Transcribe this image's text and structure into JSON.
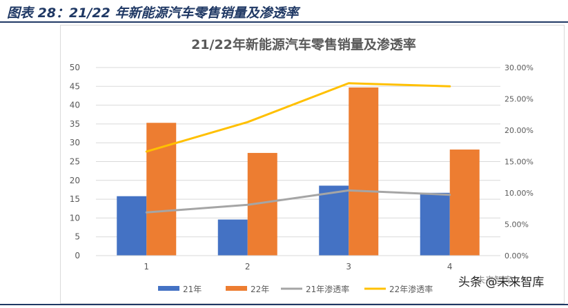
{
  "caption": "图表 28：21/22 年新能源汽车零售销量及渗透率",
  "watermark": {
    "line1": "未来智库",
    "line2": "头条 @未来智库"
  },
  "chart_data": {
    "type": "bar",
    "title": "21/22年新能源汽车零售销量及渗透率",
    "categories": [
      "1",
      "2",
      "3",
      "4"
    ],
    "ylim": [
      0,
      50
    ],
    "y_ticks": [
      "0",
      "5",
      "10",
      "15",
      "20",
      "25",
      "30",
      "35",
      "40",
      "45",
      "50"
    ],
    "y2lim": [
      0,
      0.3
    ],
    "y2_ticks": [
      "0.00%",
      "5.00%",
      "10.00%",
      "15.00%",
      "20.00%",
      "25.00%",
      "30.00%"
    ],
    "grid": true,
    "legend_position": "bottom",
    "series": [
      {
        "name": "21年",
        "type": "bar",
        "axis": "left",
        "color": "#4472c4",
        "values": [
          15.8,
          9.6,
          18.6,
          16.7
        ]
      },
      {
        "name": "22年",
        "type": "bar",
        "axis": "left",
        "color": "#ed7d31",
        "values": [
          35.3,
          27.3,
          44.7,
          28.2
        ]
      },
      {
        "name": "21年渗透率",
        "type": "line",
        "axis": "right",
        "color": "#a5a5a5",
        "values": [
          0.069,
          0.081,
          0.104,
          0.097
        ]
      },
      {
        "name": "22年渗透率",
        "type": "line",
        "axis": "right",
        "color": "#ffc000",
        "values": [
          0.166,
          0.213,
          0.275,
          0.27
        ]
      }
    ]
  }
}
